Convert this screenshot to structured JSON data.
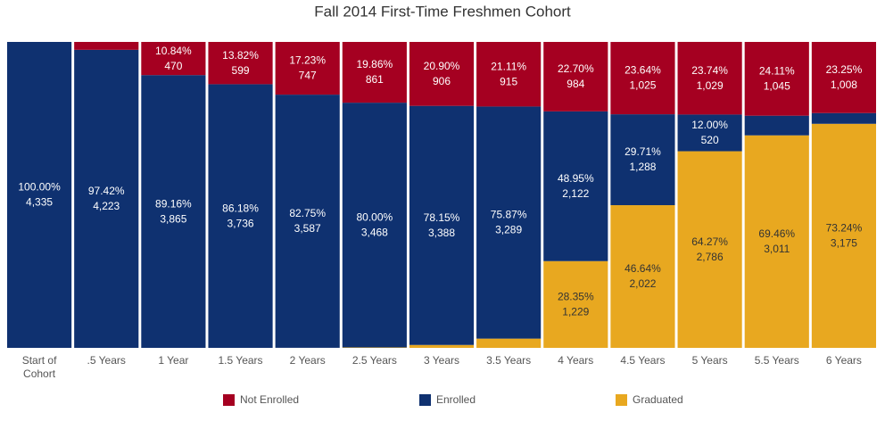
{
  "chart_data": {
    "type": "stacked-bar-100",
    "title": "Fall 2014 First-Time Freshmen Cohort",
    "categories": [
      "Start of Cohort",
      ".5 Years",
      "1 Year",
      "1.5 Years",
      "2 Years",
      "2.5 Years",
      "3 Years",
      "3.5 Years",
      "4 Years",
      "4.5 Years",
      "5 Years",
      "5.5 Years",
      "6 Years"
    ],
    "ylim": [
      0,
      100
    ],
    "legend": "bottom",
    "series": [
      {
        "name": "Graduated",
        "color": "#e8a820",
        "text_color": "#333333",
        "values": [
          0,
          0,
          0,
          0,
          0.02,
          0.14,
          0.95,
          3.02,
          28.35,
          46.64,
          64.27,
          69.46,
          73.24
        ],
        "value_labels": [
          null,
          null,
          null,
          null,
          null,
          null,
          null,
          null,
          "28.35%",
          "46.64%",
          "64.27%",
          "69.46%",
          "73.24%"
        ],
        "counts": [
          null,
          null,
          null,
          null,
          null,
          null,
          null,
          null,
          1229,
          2022,
          2786,
          3011,
          3175
        ],
        "count_labels": [
          null,
          null,
          null,
          null,
          null,
          null,
          null,
          null,
          "1,229",
          "2,022",
          "2,786",
          "3,011",
          "3,175"
        ]
      },
      {
        "name": "Enrolled",
        "color": "#0f3170",
        "text_color": "#ffffff",
        "values": [
          100.0,
          97.42,
          89.16,
          86.18,
          82.75,
          80.0,
          78.15,
          75.87,
          48.95,
          29.71,
          12.0,
          6.43,
          3.51
        ],
        "value_labels": [
          "100.00%",
          "97.42%",
          "89.16%",
          "86.18%",
          "82.75%",
          "80.00%",
          "78.15%",
          "75.87%",
          "48.95%",
          "29.71%",
          "12.00%",
          null,
          null
        ],
        "counts": [
          4335,
          4223,
          3865,
          3736,
          3587,
          3468,
          3388,
          3289,
          2122,
          1288,
          520,
          null,
          null
        ],
        "count_labels": [
          "4,335",
          "4,223",
          "3,865",
          "3,736",
          "3,587",
          "3,468",
          "3,388",
          "3,289",
          "2,122",
          "1,288",
          "520",
          null,
          null
        ]
      },
      {
        "name": "Not Enrolled",
        "color": "#a50021",
        "text_color": "#ffffff",
        "values": [
          0,
          2.58,
          10.84,
          13.82,
          17.23,
          19.86,
          20.9,
          21.11,
          22.7,
          23.64,
          23.74,
          24.11,
          23.25
        ],
        "value_labels": [
          null,
          null,
          "10.84%",
          "13.82%",
          "17.23%",
          "19.86%",
          "20.90%",
          "21.11%",
          "22.70%",
          "23.64%",
          "23.74%",
          "24.11%",
          "23.25%"
        ],
        "counts": [
          null,
          null,
          470,
          599,
          747,
          861,
          906,
          915,
          984,
          1025,
          1029,
          1045,
          1008
        ],
        "count_labels": [
          null,
          null,
          "470",
          "599",
          "747",
          "861",
          "906",
          "915",
          "984",
          "1,025",
          "1,029",
          "1,045",
          "1,008"
        ]
      }
    ],
    "legend_order": [
      2,
      1,
      0
    ]
  }
}
